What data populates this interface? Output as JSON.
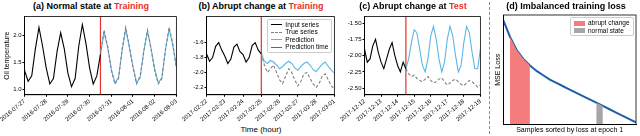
{
  "chart_data": [
    {
      "type": "line",
      "title": "(a) Normal state at Training",
      "y_label": "Oil temperature",
      "x": [
        0,
        4,
        8,
        12,
        16,
        20,
        24,
        28,
        32,
        36,
        40,
        44,
        48,
        52,
        56,
        60,
        64,
        68,
        72,
        76,
        80,
        84,
        88,
        92,
        96,
        100,
        104,
        108,
        112,
        116,
        120,
        124,
        128,
        132,
        136,
        140,
        144,
        148,
        152,
        156,
        160,
        164,
        168
      ],
      "xlim": [
        0,
        168
      ],
      "xticks": [
        {
          "value": 0,
          "label": "2016-07-27"
        },
        {
          "value": 24,
          "label": "2016-07-28"
        },
        {
          "value": 48,
          "label": "2016-07-29"
        },
        {
          "value": 72,
          "label": "2016-07-30"
        },
        {
          "value": 96,
          "label": "2016-07-31"
        },
        {
          "value": 120,
          "label": "2016-08-01"
        },
        {
          "value": 144,
          "label": "2016-08-02"
        },
        {
          "value": 168,
          "label": "2016-08-03"
        }
      ],
      "ylim": [
        0.9,
        2.35
      ],
      "yticks": [
        {
          "value": 1,
          "label": "1.0"
        },
        1.5,
        {
          "value": 2,
          "label": "2.0"
        }
      ],
      "grid": false,
      "series": [
        {
          "color": "#000000",
          "line_style": "solid",
          "values": [
            1.35,
            1.15,
            1.25,
            1.75,
            2.15,
            1.8,
            1.4,
            1.1,
            1.2,
            1.7,
            2.05,
            1.75,
            1.3,
            1.05,
            1.2,
            1.8,
            2.2,
            1.85,
            1.4,
            1.1,
            1.25,
            1.65,
            null,
            null,
            null,
            null,
            null,
            null,
            null,
            null,
            null,
            null,
            null,
            null,
            null,
            null,
            null,
            null,
            null,
            null,
            null,
            null,
            null
          ]
        },
        {
          "color": "#808080",
          "line_style": "dashed",
          "values": [
            null,
            null,
            null,
            null,
            null,
            null,
            null,
            null,
            null,
            null,
            null,
            null,
            null,
            null,
            null,
            null,
            null,
            null,
            null,
            null,
            null,
            1.65,
            2.1,
            1.8,
            1.35,
            1.1,
            1.2,
            1.75,
            2.15,
            1.8,
            1.4,
            1.1,
            1.25,
            1.7,
            2.1,
            1.75,
            1.35,
            1.1,
            1.2,
            1.75,
            2.15,
            1.85,
            1.4
          ]
        },
        {
          "color": "#5bb8e6",
          "line_style": "solid",
          "values": [
            null,
            null,
            null,
            null,
            null,
            null,
            null,
            null,
            null,
            null,
            null,
            null,
            null,
            null,
            null,
            null,
            null,
            null,
            null,
            null,
            null,
            1.65,
            2.05,
            1.78,
            1.38,
            1.12,
            1.22,
            1.72,
            2.12,
            1.78,
            1.42,
            1.12,
            1.22,
            1.72,
            2.08,
            1.76,
            1.38,
            1.12,
            1.22,
            1.74,
            2.12,
            1.82,
            1.42
          ]
        }
      ],
      "annotations": [
        {
          "type": "vline",
          "x": 84,
          "color": "#e8312a"
        }
      ]
    },
    {
      "type": "line",
      "title": "(b) Abrupt change at Training",
      "x_label": "Time (hour)",
      "x": [
        0,
        4,
        8,
        12,
        16,
        20,
        24,
        28,
        32,
        36,
        40,
        44,
        48,
        52,
        56,
        60,
        64,
        68,
        72,
        76,
        80,
        84,
        88,
        92,
        96,
        100,
        104,
        108,
        112,
        116,
        120,
        124,
        128,
        132,
        136,
        140,
        144,
        148,
        152,
        156,
        160,
        164,
        168
      ],
      "xlim": [
        0,
        168
      ],
      "xticks": [
        {
          "value": 0,
          "label": "2017-02-22"
        },
        {
          "value": 24,
          "label": "2017-02-23"
        },
        {
          "value": 48,
          "label": "2017-02-24"
        },
        {
          "value": 72,
          "label": "2017-02-25"
        },
        {
          "value": 96,
          "label": "2017-02-26"
        },
        {
          "value": 120,
          "label": "2017-02-27"
        },
        {
          "value": 144,
          "label": "2017-02-28"
        },
        {
          "value": 168,
          "label": "2017-03-01"
        }
      ],
      "ylim": [
        -2.3,
        -1.25
      ],
      "yticks": [
        -2.2,
        {
          "value": -2,
          "label": "-2.0"
        },
        -1.8,
        -1.6
      ],
      "grid": false,
      "legend": "upper right",
      "series": [
        {
          "name": "Input series",
          "color": "#000000",
          "line_style": "solid",
          "values": [
            -1.75,
            -1.85,
            -1.8,
            -1.65,
            -1.6,
            -1.7,
            -1.78,
            -1.88,
            -1.82,
            -1.66,
            -1.62,
            -1.72,
            -1.76,
            -1.86,
            -1.8,
            -1.64,
            -1.6,
            -1.7,
            -1.75,
            null,
            null,
            null,
            null,
            null,
            null,
            null,
            null,
            null,
            null,
            null,
            null,
            null,
            null,
            null,
            null,
            null,
            null,
            null,
            null,
            null,
            null,
            null,
            null
          ]
        },
        {
          "name": "True series",
          "color": "#808080",
          "line_style": "dashed",
          "values": [
            null,
            null,
            null,
            null,
            null,
            null,
            null,
            null,
            null,
            null,
            null,
            null,
            null,
            null,
            null,
            null,
            null,
            null,
            -1.75,
            -1.9,
            -2.0,
            -1.95,
            -1.9,
            -2.0,
            -2.1,
            -2.15,
            -2.05,
            -1.95,
            -2.0,
            -2.1,
            -2.18,
            -2.12,
            -2.02,
            -2.0,
            -2.08,
            -2.15,
            -2.2,
            -2.15,
            -2.05,
            -2.02,
            -2.1,
            -2.18,
            -2.22
          ]
        },
        {
          "name": "Prediction",
          "color": "#5bb8e6",
          "line_style": "solid",
          "values": [
            null,
            null,
            null,
            null,
            null,
            null,
            null,
            null,
            null,
            null,
            null,
            null,
            null,
            null,
            null,
            null,
            null,
            null,
            -1.75,
            -1.85,
            -1.88,
            -1.84,
            -1.86,
            -1.9,
            -1.95,
            -1.92,
            -1.88,
            -1.85,
            -1.88,
            -1.94,
            -1.97,
            -1.92,
            -1.88,
            -1.86,
            -1.9,
            -1.96,
            -1.99,
            -1.94,
            -1.89,
            -1.86,
            -1.92,
            -1.97,
            -2.01
          ]
        }
      ],
      "annotations": [
        {
          "type": "vline",
          "name": "Prediction time",
          "x": 72,
          "color": "#e8312a"
        }
      ]
    },
    {
      "type": "line",
      "title": "(c) Abrupt change at Test",
      "x": [
        0,
        4,
        8,
        12,
        16,
        20,
        24,
        28,
        32,
        36,
        40,
        44,
        48,
        52,
        56,
        60,
        64,
        68,
        72,
        76,
        80,
        84,
        88,
        92,
        96,
        100,
        104,
        108,
        112,
        116,
        120,
        124,
        128,
        132,
        136,
        140,
        144,
        148,
        152,
        156,
        160,
        164,
        168
      ],
      "xlim": [
        0,
        168
      ],
      "xticks": [
        {
          "value": 0,
          "label": "2017-12-12"
        },
        {
          "value": 24,
          "label": "2017-12-13"
        },
        {
          "value": 48,
          "label": "2017-12-14"
        },
        {
          "value": 72,
          "label": "2017-12-15"
        },
        {
          "value": 96,
          "label": "2017-12-16"
        },
        {
          "value": 120,
          "label": "2017-12-17"
        },
        {
          "value": 144,
          "label": "2017-12-18"
        },
        {
          "value": 168,
          "label": "2017-12-19"
        }
      ],
      "ylim": [
        -2.6,
        -1.4
      ],
      "yticks": [
        {
          "value": -2.5,
          "label": "-2.50"
        },
        {
          "value": -2.25,
          "label": "-2.25"
        },
        {
          "value": -2,
          "label": "-2.00"
        },
        {
          "value": -1.75,
          "label": "-1.75"
        },
        {
          "value": -1.5,
          "label": "-1.50"
        }
      ],
      "grid": false,
      "series": [
        {
          "color": "#000000",
          "line_style": "solid",
          "values": [
            -1.9,
            -2.1,
            -2.05,
            -1.85,
            -1.75,
            -1.95,
            -2.1,
            -2.2,
            -2.05,
            -1.9,
            -1.8,
            -2.0,
            -2.15,
            -2.25,
            -2.1,
            -2.2,
            null,
            null,
            null,
            null,
            null,
            null,
            null,
            null,
            null,
            null,
            null,
            null,
            null,
            null,
            null,
            null,
            null,
            null,
            null,
            null,
            null,
            null,
            null,
            null,
            null,
            null,
            null
          ]
        },
        {
          "color": "#808080",
          "line_style": "dashed",
          "values": [
            null,
            null,
            null,
            null,
            null,
            null,
            null,
            null,
            null,
            null,
            null,
            null,
            null,
            null,
            null,
            -2.2,
            -2.28,
            -2.32,
            -2.3,
            -2.35,
            -2.38,
            -2.4,
            -2.36,
            -2.32,
            -2.38,
            -2.42,
            -2.4,
            -2.36,
            -2.34,
            -2.4,
            -2.45,
            -2.42,
            -2.38,
            -2.36,
            -2.4,
            -2.44,
            -2.46,
            -2.42,
            -2.38,
            -2.4,
            -2.44,
            -2.48,
            -2.45
          ]
        },
        {
          "color": "#5bb8e6",
          "line_style": "solid",
          "values": [
            null,
            null,
            null,
            null,
            null,
            null,
            null,
            null,
            null,
            null,
            null,
            null,
            null,
            null,
            null,
            -2.2,
            -2.05,
            -1.8,
            -1.6,
            -1.65,
            -1.9,
            -2.15,
            -2.25,
            -2.05,
            -1.7,
            -1.55,
            -1.75,
            -2.05,
            -2.25,
            -2.1,
            -1.75,
            -1.55,
            -1.7,
            -2.0,
            -2.25,
            -2.15,
            -1.8,
            -1.55,
            -1.65,
            -1.95,
            -2.2,
            -2.2,
            -1.9
          ]
        }
      ],
      "annotations": [
        {
          "type": "vline",
          "x": 60,
          "color": "#e8312a"
        }
      ]
    },
    {
      "type": "line",
      "title": "(d) Imbalanced training loss",
      "x_label": "Samples sorted by loss at epoch 1",
      "y_label": "MSE Loss",
      "x": [
        0,
        5,
        10,
        15,
        20,
        25,
        30,
        35,
        40,
        45,
        50,
        55,
        60,
        65,
        70,
        75,
        80,
        85,
        90,
        95,
        100
      ],
      "values": [
        0.95,
        0.8,
        0.68,
        0.6,
        0.54,
        0.49,
        0.45,
        0.41,
        0.38,
        0.35,
        0.32,
        0.29,
        0.26,
        0.23,
        0.2,
        0.17,
        0.14,
        0.11,
        0.08,
        0.05,
        0.02
      ],
      "color": "#1f5fa8",
      "xlim": [
        0,
        100
      ],
      "ylim": [
        0,
        1
      ],
      "xticks": [],
      "yticks": [],
      "tick_labels": false,
      "grid": false,
      "legend": "upper right",
      "highlights": [
        {
          "name": "abrupt change",
          "color": "#f47c7c",
          "x": [
            5,
            20
          ]
        },
        {
          "name": "normal state",
          "color": "#a6a6a6",
          "x": [
            70,
            75
          ]
        }
      ]
    }
  ]
}
